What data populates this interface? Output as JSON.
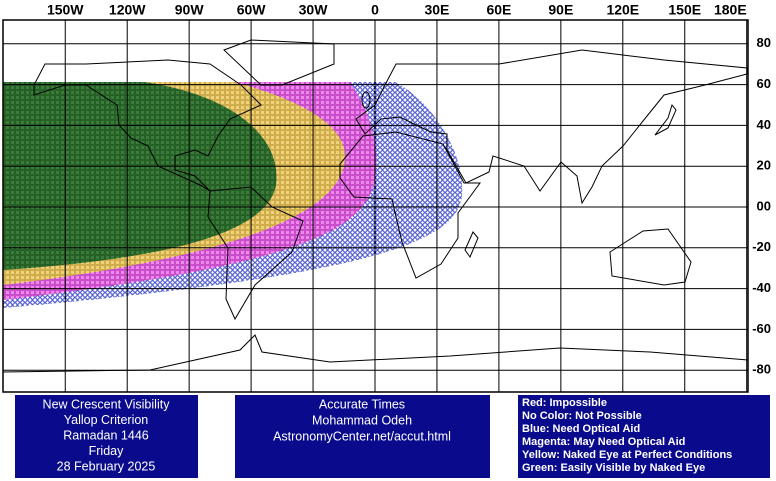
{
  "longitudes": [
    {
      "value": -150,
      "label": "150W"
    },
    {
      "value": -120,
      "label": "120W"
    },
    {
      "value": -90,
      "label": "90W"
    },
    {
      "value": -60,
      "label": "60W"
    },
    {
      "value": -30,
      "label": "30W"
    },
    0,
    {
      "value": 30,
      "label": "30E"
    },
    {
      "value": 60,
      "label": "60E"
    },
    {
      "value": 90,
      "label": "90E"
    },
    {
      "value": 120,
      "label": "120E"
    },
    {
      "value": 150,
      "label": "150E"
    },
    {
      "value": 180,
      "label": "180E"
    }
  ],
  "latitudes": [
    80,
    60,
    40,
    20,
    {
      "value": 0,
      "label": "00"
    },
    -20,
    -40,
    -60,
    -80
  ],
  "info_box": [
    "New Crescent Visibility",
    "Yallop Criterion",
    "Ramadan 1446",
    "Friday",
    "28 February 2025"
  ],
  "credit_box": [
    "Accurate Times",
    "Mohammad Odeh",
    "AstronomyCenter.net/accut.html"
  ],
  "legend": [
    "Red: Impossible",
    "No Color: Not Possible",
    "Blue: Need Optical Aid",
    "Magenta: May Need Optical Aid",
    "Yellow: Naked Eye at Perfect Conditions",
    "Green: Easily Visible by Naked Eye"
  ]
}
